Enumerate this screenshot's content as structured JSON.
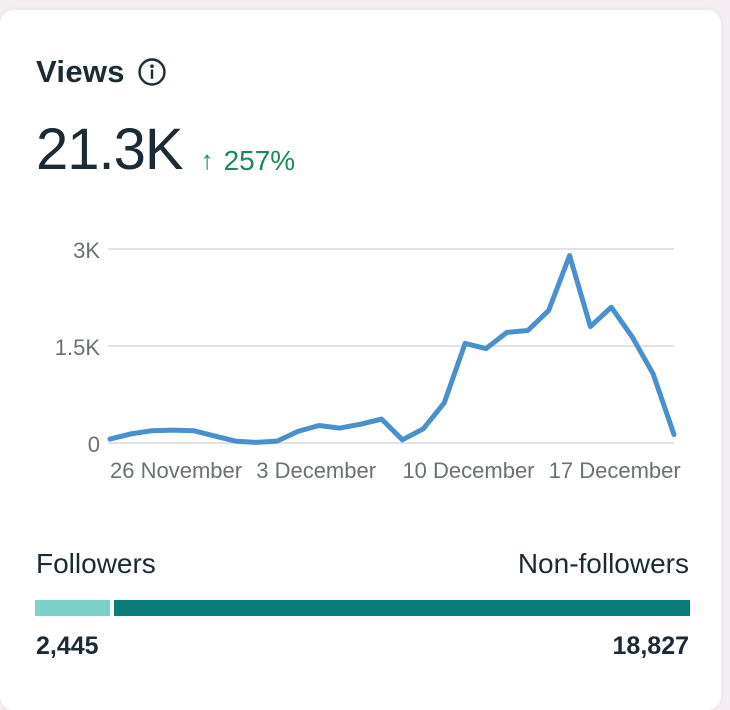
{
  "card": {
    "title": "Views",
    "total": "21.3K",
    "change_arrow": "↑",
    "change_pct": "257%",
    "change_color": "#1a8a5a"
  },
  "chart_data": {
    "type": "line",
    "title": "Views",
    "series": [
      {
        "name": "Views",
        "color": "#4a90cf",
        "values": [
          60,
          140,
          190,
          200,
          190,
          110,
          30,
          10,
          30,
          180,
          270,
          230,
          290,
          370,
          50,
          220,
          620,
          1540,
          1460,
          1710,
          1740,
          2050,
          2900,
          1800,
          2100,
          1640,
          1070,
          130
        ]
      }
    ],
    "ylim": [
      0,
      3000
    ],
    "yticks": [
      0,
      1500,
      3000
    ],
    "ytick_labels": [
      "0",
      "1.5K",
      "3K"
    ],
    "xtick_labels": [
      "26 November",
      "3 December",
      "10 December",
      "17 December"
    ],
    "xtick_indices": [
      0,
      7,
      14,
      21
    ],
    "grid": true
  },
  "audience": {
    "followers_label": "Followers",
    "nonfollowers_label": "Non-followers",
    "followers_count": "2,445",
    "nonfollowers_count": "18,827",
    "followers_value": 2445,
    "nonfollowers_value": 18827,
    "followers_color": "#7ed0c8",
    "nonfollowers_color": "#0b7b78"
  }
}
